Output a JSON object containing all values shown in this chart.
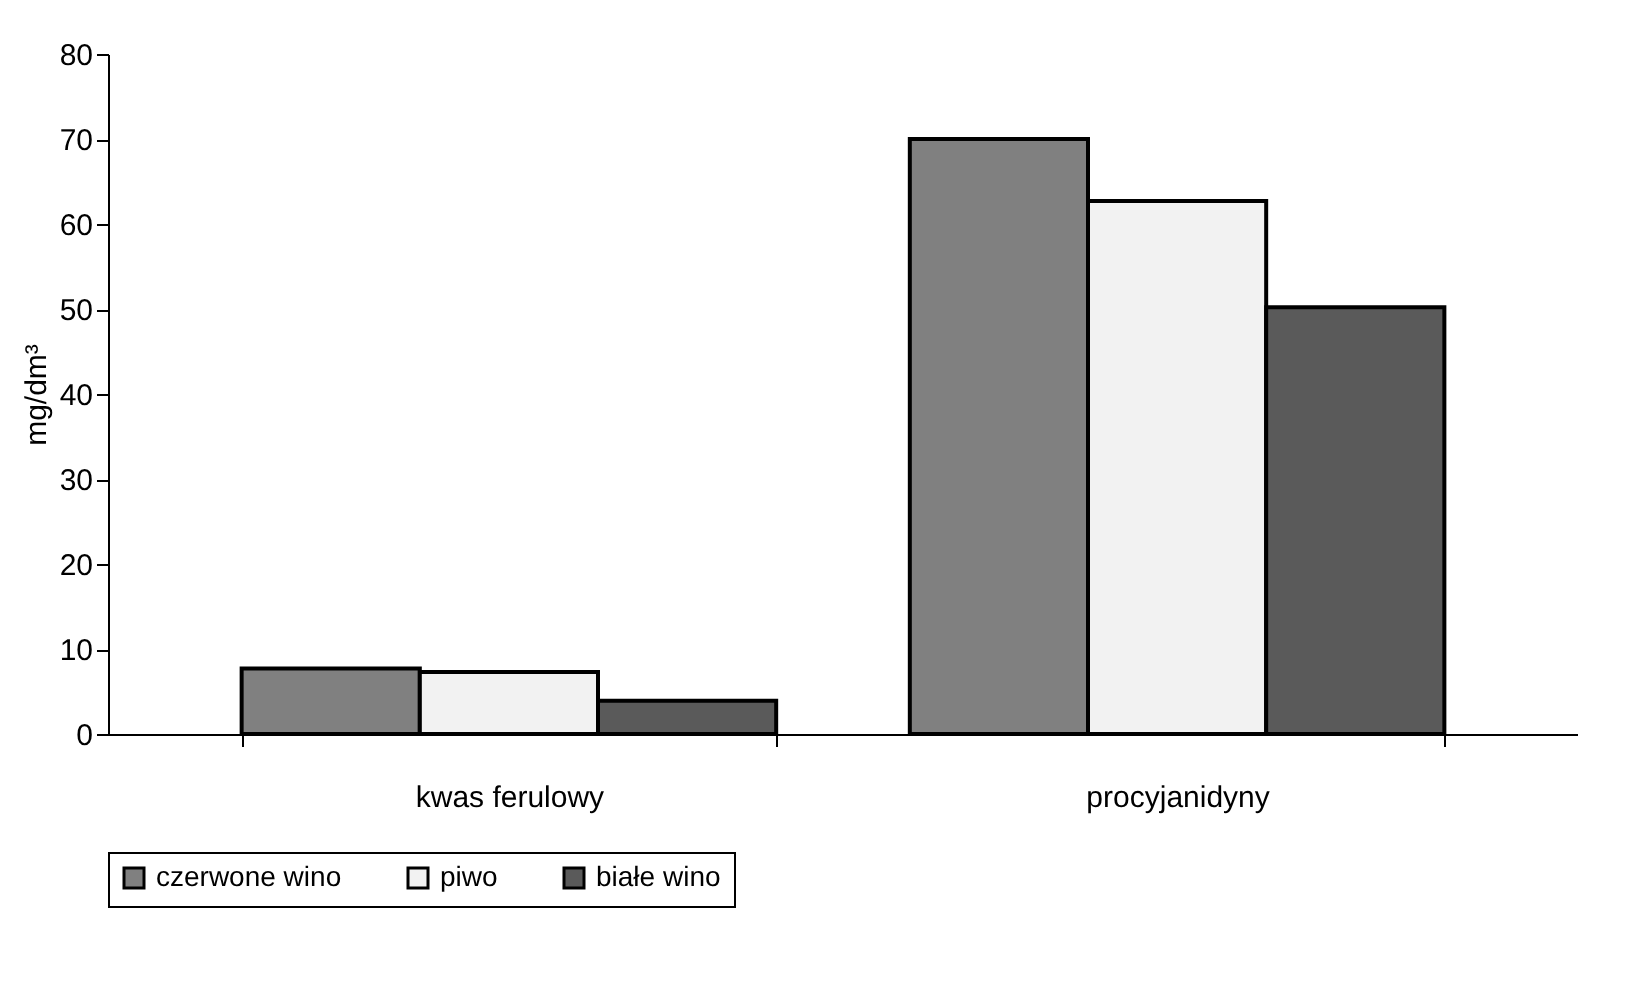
{
  "chart_data": {
    "type": "bar",
    "ylabel": "mg/dm³",
    "categories": [
      "kwas ferulowy",
      "procyjanidyny"
    ],
    "series": [
      {
        "name": "czerwone wino",
        "color": "#808080",
        "values": [
          7.7,
          70
        ]
      },
      {
        "name": "piwo",
        "color": "#f2f2f2",
        "values": [
          7.3,
          62.7
        ]
      },
      {
        "name": "białe wino",
        "color": "#5a5a5a",
        "values": [
          3.9,
          50.2
        ]
      }
    ],
    "ylim": [
      0,
      80
    ],
    "yticks": [
      0,
      10,
      20,
      30,
      40,
      50,
      60,
      70,
      80
    ],
    "grid": false,
    "legend": "bottom"
  }
}
